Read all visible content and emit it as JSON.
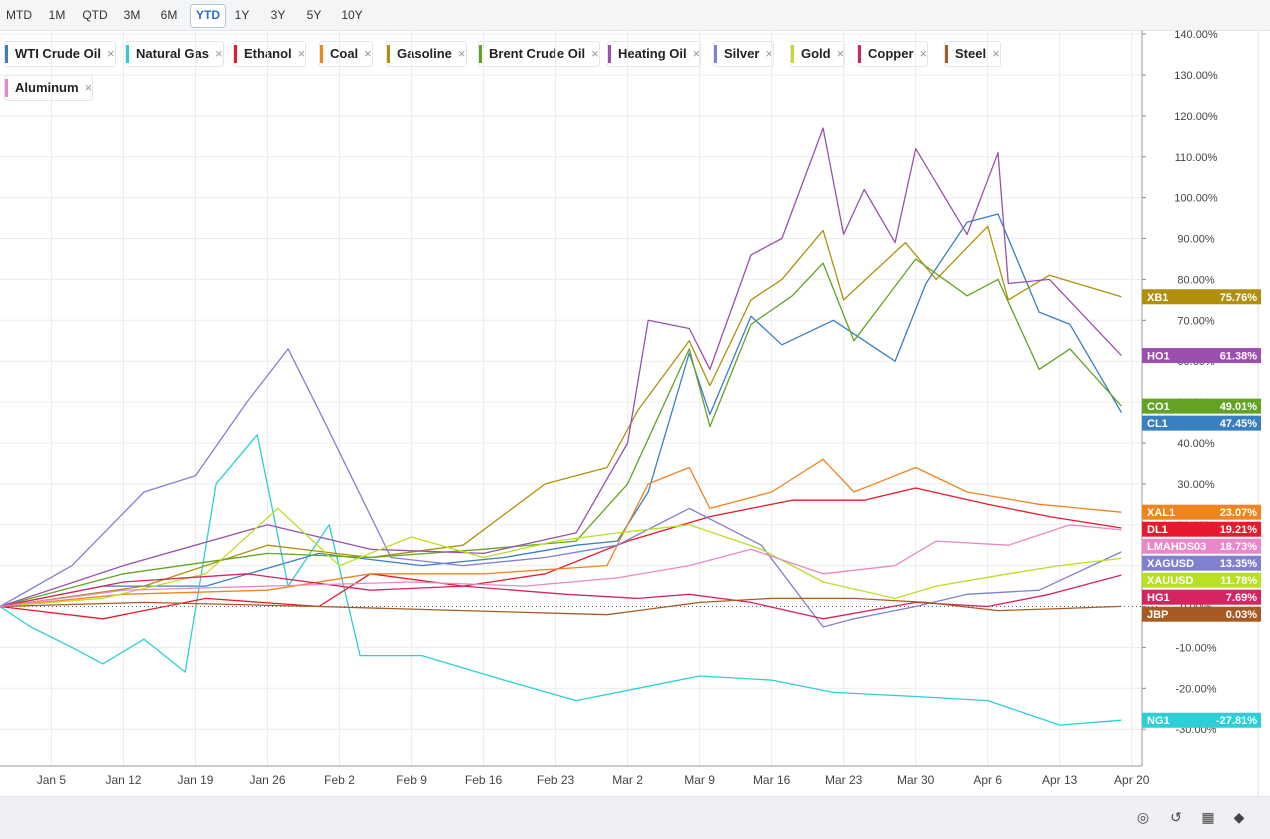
{
  "toolbar": {
    "ranges": [
      "MTD",
      "1M",
      "QTD",
      "3M",
      "6M",
      "YTD",
      "1Y",
      "3Y",
      "5Y",
      "10Y"
    ],
    "active": "YTD"
  },
  "legend": [
    {
      "name": "WTI Crude Oil",
      "color": "#3a7fc0"
    },
    {
      "name": "Natural Gas",
      "color": "#2ccfd6"
    },
    {
      "name": "Ethanol",
      "color": "#e8192c"
    },
    {
      "name": "Coal",
      "color": "#f0841f"
    },
    {
      "name": "Gasoline",
      "color": "#b0900a"
    },
    {
      "name": "Brent Crude Oil",
      "color": "#62a324"
    },
    {
      "name": "Heating Oil",
      "color": "#9b4fae"
    },
    {
      "name": "Silver",
      "color": "#8080d0"
    },
    {
      "name": "Gold",
      "color": "#b8e024"
    },
    {
      "name": "Copper",
      "color": "#d6245f"
    },
    {
      "name": "Steel",
      "color": "#a85a23"
    },
    {
      "name": "Aluminum",
      "color": "#e888c8"
    }
  ],
  "bottom_tools": [
    "hide-icon",
    "reset-icon",
    "grid-icon",
    "tags-icon"
  ],
  "chart_data": {
    "type": "line",
    "y_tick_labels": [
      "140.00%",
      "130.00%",
      "120.00%",
      "110.00%",
      "100.00%",
      "90.00%",
      "80.00%",
      "70.00%",
      "60.00%",
      "50.00%",
      "40.00%",
      "30.00%",
      "20.00%",
      "10.00%",
      "0.00%",
      "-10.00%",
      "-20.00%",
      "-30.00%"
    ],
    "y_ticks": [
      140,
      130,
      120,
      110,
      100,
      90,
      80,
      70,
      60,
      50,
      40,
      30,
      20,
      10,
      0,
      -10,
      -20,
      -30
    ],
    "ylim": [
      -39,
      141
    ],
    "x_tick_labels": [
      "Jan 5",
      "Jan 12",
      "Jan 19",
      "Jan 26",
      "Feb 2",
      "Feb 9",
      "Feb 16",
      "Feb 23",
      "Mar 2",
      "Mar 9",
      "Mar 16",
      "Mar 23",
      "Mar 30",
      "Apr 6",
      "Apr 13",
      "Apr 20"
    ],
    "x_ticks": [
      "2022-01-05",
      "2022-01-12",
      "2022-01-19",
      "2022-01-26",
      "2022-02-02",
      "2022-02-09",
      "2022-02-16",
      "2022-02-23",
      "2022-03-02",
      "2022-03-09",
      "2022-03-16",
      "2022-03-23",
      "2022-03-30",
      "2022-04-06",
      "2022-04-13",
      "2022-04-20"
    ],
    "xlim": [
      "2021-12-31",
      "2022-04-21"
    ],
    "grid": true,
    "legend": "top",
    "series": [
      {
        "name": "WTI Crude Oil",
        "symbol": "CL1",
        "last": "47.45%",
        "color": "#3a7fc0",
        "x": [
          "2021-12-31",
          "2022-01-10",
          "2022-01-20",
          "2022-01-31",
          "2022-02-10",
          "2022-02-18",
          "2022-02-25",
          "2022-03-01",
          "2022-03-04",
          "2022-03-08",
          "2022-03-10",
          "2022-03-14",
          "2022-03-17",
          "2022-03-22",
          "2022-03-28",
          "2022-03-31",
          "2022-04-04",
          "2022-04-07",
          "2022-04-11",
          "2022-04-14",
          "2022-04-19"
        ],
        "y": [
          0,
          5,
          5,
          13,
          10,
          12,
          15,
          16,
          28,
          62,
          47,
          71,
          64,
          70,
          60,
          79,
          94,
          96,
          72,
          69,
          47.45
        ]
      },
      {
        "name": "Natural Gas",
        "symbol": "NG1",
        "last": "-27.81%",
        "color": "#2ccfd6",
        "x": [
          "2021-12-31",
          "2022-01-03",
          "2022-01-07",
          "2022-01-10",
          "2022-01-14",
          "2022-01-18",
          "2022-01-21",
          "2022-01-25",
          "2022-01-28",
          "2022-02-01",
          "2022-02-04",
          "2022-02-10",
          "2022-02-18",
          "2022-02-25",
          "2022-03-03",
          "2022-03-09",
          "2022-03-16",
          "2022-03-22",
          "2022-03-30",
          "2022-04-06",
          "2022-04-13",
          "2022-04-19"
        ],
        "y": [
          0,
          -5,
          -10,
          -14,
          -8,
          -16,
          30,
          42,
          5,
          20,
          -12,
          -12,
          -18,
          -23,
          -20,
          -17,
          -18,
          -21,
          -22,
          -23,
          -29,
          -27.81
        ]
      },
      {
        "name": "Ethanol",
        "symbol": "DL1",
        "last": "19.21%",
        "color": "#e8192c",
        "x": [
          "2021-12-31",
          "2022-01-10",
          "2022-01-20",
          "2022-01-31",
          "2022-02-05",
          "2022-02-14",
          "2022-02-22",
          "2022-03-02",
          "2022-03-10",
          "2022-03-18",
          "2022-03-25",
          "2022-03-30",
          "2022-04-06",
          "2022-04-12",
          "2022-04-19"
        ],
        "y": [
          0,
          -3,
          2,
          0,
          8,
          5,
          8,
          16,
          22,
          26,
          26,
          29,
          25,
          22,
          19.21
        ]
      },
      {
        "name": "Coal",
        "symbol": "XAL1",
        "last": "23.07%",
        "color": "#f0841f",
        "x": [
          "2021-12-31",
          "2022-01-12",
          "2022-01-26",
          "2022-02-05",
          "2022-02-16",
          "2022-02-28",
          "2022-03-04",
          "2022-03-08",
          "2022-03-10",
          "2022-03-16",
          "2022-03-21",
          "2022-03-24",
          "2022-03-30",
          "2022-04-04",
          "2022-04-11",
          "2022-04-19"
        ],
        "y": [
          0,
          3,
          4,
          8,
          8,
          10,
          30,
          34,
          24,
          28,
          36,
          28,
          34,
          28,
          25,
          23.07
        ]
      },
      {
        "name": "Gasoline",
        "symbol": "XB1",
        "last": "75.76%",
        "color": "#b0900a",
        "x": [
          "2021-12-31",
          "2022-01-14",
          "2022-01-26",
          "2022-02-05",
          "2022-02-14",
          "2022-02-22",
          "2022-02-28",
          "2022-03-03",
          "2022-03-08",
          "2022-03-10",
          "2022-03-14",
          "2022-03-17",
          "2022-03-21",
          "2022-03-23",
          "2022-03-29",
          "2022-04-01",
          "2022-04-06",
          "2022-04-08",
          "2022-04-12",
          "2022-04-19"
        ],
        "y": [
          0,
          5,
          15,
          12,
          15,
          30,
          34,
          48,
          65,
          54,
          75,
          80,
          92,
          75,
          89,
          80,
          93,
          75,
          81,
          75.76
        ]
      },
      {
        "name": "Brent Crude Oil",
        "symbol": "CO1",
        "last": "49.01%",
        "color": "#62a324",
        "x": [
          "2021-12-31",
          "2022-01-12",
          "2022-01-26",
          "2022-02-05",
          "2022-02-16",
          "2022-02-25",
          "2022-03-02",
          "2022-03-08",
          "2022-03-10",
          "2022-03-14",
          "2022-03-18",
          "2022-03-21",
          "2022-03-24",
          "2022-03-30",
          "2022-04-04",
          "2022-04-07",
          "2022-04-11",
          "2022-04-14",
          "2022-04-19"
        ],
        "y": [
          0,
          8,
          13,
          12,
          14,
          16,
          30,
          63,
          44,
          69,
          76,
          84,
          65,
          85,
          76,
          80,
          58,
          63,
          49.01
        ]
      },
      {
        "name": "Heating Oil",
        "symbol": "HO1",
        "last": "61.38%",
        "color": "#9b4fae",
        "x": [
          "2021-12-31",
          "2022-01-12",
          "2022-01-26",
          "2022-02-05",
          "2022-02-16",
          "2022-02-25",
          "2022-03-02",
          "2022-03-04",
          "2022-03-08",
          "2022-03-10",
          "2022-03-14",
          "2022-03-17",
          "2022-03-21",
          "2022-03-23",
          "2022-03-25",
          "2022-03-28",
          "2022-03-30",
          "2022-04-04",
          "2022-04-07",
          "2022-04-08",
          "2022-04-12",
          "2022-04-19"
        ],
        "y": [
          0,
          10,
          20,
          14,
          13,
          18,
          40,
          70,
          68,
          58,
          86,
          90,
          117,
          91,
          102,
          89,
          112,
          91,
          111,
          79,
          80,
          61.38
        ]
      },
      {
        "name": "Silver",
        "symbol": "XAGUSD",
        "last": "13.35%",
        "color": "#8080d0",
        "x": [
          "2021-12-31",
          "2022-01-07",
          "2022-01-14",
          "2022-01-19",
          "2022-01-24",
          "2022-01-28",
          "2022-01-31",
          "2022-02-07",
          "2022-02-14",
          "2022-02-22",
          "2022-03-01",
          "2022-03-08",
          "2022-03-15",
          "2022-03-21",
          "2022-03-24",
          "2022-03-30",
          "2022-04-04",
          "2022-04-11",
          "2022-04-19"
        ],
        "y": [
          0,
          10,
          28,
          32,
          50,
          63,
          48,
          12,
          10,
          12,
          15,
          24,
          15,
          -5,
          -3,
          0,
          3,
          4,
          13.35
        ]
      },
      {
        "name": "Gold",
        "symbol": "XAUUSD",
        "last": "11.78%",
        "color": "#b8e024",
        "x": [
          "2021-12-31",
          "2022-01-10",
          "2022-01-20",
          "2022-01-27",
          "2022-02-02",
          "2022-02-09",
          "2022-02-16",
          "2022-02-23",
          "2022-03-01",
          "2022-03-08",
          "2022-03-15",
          "2022-03-21",
          "2022-03-28",
          "2022-04-01",
          "2022-04-08",
          "2022-04-13",
          "2022-04-19"
        ],
        "y": [
          0,
          2,
          8,
          24,
          10,
          17,
          12,
          16,
          18,
          20,
          14,
          6,
          2,
          5,
          8,
          10,
          11.78
        ]
      },
      {
        "name": "Copper",
        "symbol": "HG1",
        "last": "7.69%",
        "color": "#d6245f",
        "x": [
          "2021-12-31",
          "2022-01-12",
          "2022-01-24",
          "2022-02-05",
          "2022-02-14",
          "2022-02-24",
          "2022-03-03",
          "2022-03-08",
          "2022-03-14",
          "2022-03-21",
          "2022-03-30",
          "2022-04-06",
          "2022-04-12",
          "2022-04-19"
        ],
        "y": [
          0,
          6,
          8,
          4,
          5,
          3,
          2,
          3,
          1,
          -3,
          1,
          0,
          3,
          7.69
        ]
      },
      {
        "name": "Steel",
        "symbol": "JBP",
        "last": "0.03%",
        "color": "#a85a23",
        "x": [
          "2021-12-31",
          "2022-01-14",
          "2022-01-31",
          "2022-02-14",
          "2022-02-28",
          "2022-03-09",
          "2022-03-16",
          "2022-03-24",
          "2022-03-31",
          "2022-04-07",
          "2022-04-13",
          "2022-04-19"
        ],
        "y": [
          0,
          1,
          0,
          -1,
          -2,
          1,
          2,
          2,
          1,
          -1,
          -0.5,
          0.03
        ]
      },
      {
        "name": "Aluminum",
        "symbol": "LMAHDS03",
        "last": "18.73%",
        "color": "#e888c8",
        "x": [
          "2021-12-31",
          "2022-01-12",
          "2022-01-26",
          "2022-02-09",
          "2022-02-20",
          "2022-03-01",
          "2022-03-08",
          "2022-03-14",
          "2022-03-21",
          "2022-03-28",
          "2022-04-01",
          "2022-04-08",
          "2022-04-14",
          "2022-04-19"
        ],
        "y": [
          0,
          4,
          5,
          6,
          5,
          7,
          10,
          14,
          8,
          10,
          16,
          15,
          20,
          18.73
        ]
      }
    ]
  }
}
